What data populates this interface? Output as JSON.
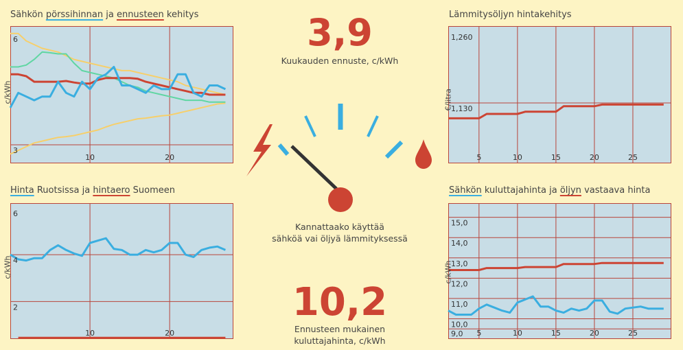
{
  "colors": {
    "panel_bg": "#c8dde6",
    "grid": "#b8443a",
    "blue": "#3aaee0",
    "red": "#cc4433",
    "green": "#5fd6a2",
    "yellow": "#f7cf6a",
    "page_bg": "#fdf4c4"
  },
  "panels": {
    "tl": {
      "title_parts": [
        "Sähkön ",
        "pörssihinnan",
        " ja ",
        "ennusteen",
        " kehitys"
      ],
      "ylabel": "c/kWh"
    },
    "bl": {
      "title_parts": [
        "Hinta",
        " Ruotsissa ja ",
        "hintaero",
        " Suomeen"
      ],
      "ylabel": "c/kWh"
    },
    "tr": {
      "title": "Lämmitysöljyn hintakehitys",
      "ylabel": "€/litra"
    },
    "br": {
      "title_parts": [
        "Sähkön",
        " kuluttajahinta ja ",
        "öljyn",
        " vastaava hinta"
      ],
      "ylabel": "c/kWh"
    }
  },
  "center": {
    "forecast_value": "3,9",
    "forecast_caption": "Kuukauden ennuste, c/kWh",
    "question_line1": "Kannattaako käyttää",
    "question_line2": "sähköä vai öljyä lämmityksessä",
    "consumer_value": "10,2",
    "consumer_caption_line1": "Ennusteen mukainen",
    "consumer_caption_line2": "kuluttajahinta, c/kWh",
    "gauge_icons": [
      "lightning-icon",
      "oil-drop-icon"
    ]
  },
  "chart_data": [
    {
      "id": "tl",
      "type": "line",
      "title": "Sähkön pörssihinnan ja ennusteen kehitys",
      "ylabel": "c/kWh",
      "xlim": [
        0,
        28
      ],
      "ylim": [
        2.5,
        6.2
      ],
      "xticks": [
        10,
        20
      ],
      "yticks": [
        {
          "v": 6,
          "label": "6"
        },
        {
          "v": 3,
          "label": "3"
        }
      ],
      "ygrid": [
        3
      ],
      "series": [
        {
          "key": "band_upper",
          "color": "yellow",
          "x": [
            0,
            1,
            2,
            3,
            4,
            5,
            6,
            7,
            8,
            9,
            10,
            11,
            12,
            13,
            14,
            15,
            16,
            17,
            18,
            19,
            20,
            21,
            22,
            23,
            24,
            25,
            26,
            27
          ],
          "y": [
            6.0,
            6.0,
            5.8,
            5.7,
            5.6,
            5.55,
            5.5,
            5.4,
            5.3,
            5.25,
            5.2,
            5.15,
            5.1,
            5.05,
            5.0,
            5.0,
            4.95,
            4.9,
            4.85,
            4.8,
            4.75,
            4.7,
            4.6,
            4.55,
            4.5,
            4.45,
            4.4,
            4.35
          ]
        },
        {
          "key": "band_lower",
          "color": "yellow",
          "x": [
            0,
            1,
            2,
            3,
            4,
            5,
            6,
            7,
            8,
            9,
            10,
            11,
            12,
            13,
            14,
            15,
            16,
            17,
            18,
            19,
            20,
            21,
            22,
            23,
            24,
            25,
            26,
            27
          ],
          "y": [
            2.75,
            2.85,
            2.95,
            3.05,
            3.1,
            3.15,
            3.2,
            3.22,
            3.25,
            3.3,
            3.35,
            3.4,
            3.48,
            3.55,
            3.6,
            3.65,
            3.7,
            3.72,
            3.75,
            3.78,
            3.8,
            3.85,
            3.9,
            3.95,
            4.0,
            4.05,
            4.1,
            4.12
          ]
        },
        {
          "key": "band_mid",
          "color": "green",
          "x": [
            0,
            1,
            2,
            3,
            4,
            5,
            6,
            7,
            8,
            9,
            10,
            11,
            12,
            13,
            14,
            15,
            16,
            17,
            18,
            19,
            20,
            21,
            22,
            23,
            24,
            25,
            26,
            27
          ],
          "y": [
            5.1,
            5.1,
            5.15,
            5.3,
            5.5,
            5.48,
            5.45,
            5.45,
            5.2,
            5.0,
            4.95,
            4.9,
            4.85,
            4.8,
            4.7,
            4.6,
            4.55,
            4.45,
            4.4,
            4.35,
            4.3,
            4.25,
            4.2,
            4.2,
            4.2,
            4.15,
            4.15,
            4.15
          ]
        },
        {
          "key": "forecast",
          "color": "red",
          "x": [
            0,
            1,
            2,
            3,
            4,
            5,
            6,
            7,
            8,
            9,
            10,
            11,
            12,
            13,
            14,
            15,
            16,
            17,
            18,
            19,
            20,
            21,
            22,
            23,
            24,
            25,
            26,
            27
          ],
          "y": [
            4.9,
            4.9,
            4.85,
            4.7,
            4.7,
            4.7,
            4.7,
            4.72,
            4.68,
            4.65,
            4.65,
            4.75,
            4.8,
            4.8,
            4.8,
            4.8,
            4.78,
            4.7,
            4.65,
            4.6,
            4.55,
            4.5,
            4.45,
            4.4,
            4.4,
            4.35,
            4.35,
            4.35
          ]
        },
        {
          "key": "spot",
          "color": "blue",
          "x": [
            0,
            1,
            2,
            3,
            4,
            5,
            6,
            7,
            8,
            9,
            10,
            11,
            12,
            13,
            14,
            15,
            16,
            17,
            18,
            19,
            20,
            21,
            22,
            23,
            24,
            25,
            26,
            27
          ],
          "y": [
            4.0,
            4.4,
            4.3,
            4.2,
            4.3,
            4.3,
            4.7,
            4.4,
            4.3,
            4.7,
            4.5,
            4.8,
            4.9,
            5.1,
            4.6,
            4.6,
            4.5,
            4.4,
            4.6,
            4.5,
            4.5,
            4.9,
            4.9,
            4.4,
            4.3,
            4.6,
            4.6,
            4.5
          ]
        }
      ]
    },
    {
      "id": "bl",
      "type": "line",
      "title": "Hinta Ruotsissa ja hintaero Suomeen",
      "ylabel": "c/kWh",
      "xlim": [
        0,
        28
      ],
      "ylim": [
        0.4,
        6.2
      ],
      "xticks": [
        10,
        20
      ],
      "yticks": [
        {
          "v": 6,
          "label": "6"
        },
        {
          "v": 4,
          "label": "4"
        },
        {
          "v": 2,
          "label": "2"
        }
      ],
      "ygrid": [
        4,
        2
      ],
      "series": [
        {
          "key": "sweden",
          "color": "blue",
          "x": [
            0,
            1,
            2,
            3,
            4,
            5,
            6,
            7,
            8,
            9,
            10,
            11,
            12,
            13,
            14,
            15,
            16,
            17,
            18,
            19,
            20,
            21,
            22,
            23,
            24,
            25,
            26,
            27
          ],
          "y": [
            4.0,
            3.8,
            3.75,
            3.85,
            3.85,
            4.2,
            4.4,
            4.2,
            4.05,
            3.95,
            4.5,
            4.6,
            4.7,
            4.25,
            4.2,
            4.0,
            4.0,
            4.2,
            4.1,
            4.2,
            4.5,
            4.5,
            4.0,
            3.9,
            4.2,
            4.3,
            4.35,
            4.2
          ]
        },
        {
          "key": "difference",
          "color": "red",
          "x": [
            1,
            27
          ],
          "y": [
            0.45,
            0.45
          ]
        }
      ]
    },
    {
      "id": "tr",
      "type": "line",
      "title": "Lämmitysöljyn hintakehitys",
      "ylabel": "€/litra",
      "xlim": [
        1,
        30
      ],
      "ylim": [
        1.02,
        1.27
      ],
      "xticks": [
        5,
        10,
        15,
        20,
        25
      ],
      "yticks": [
        {
          "v": 1.26,
          "label": "1,260"
        },
        {
          "v": 1.13,
          "label": "1,130"
        }
      ],
      "ygrid": [
        1.13
      ],
      "series": [
        {
          "key": "oil",
          "color": "red",
          "x": [
            1,
            2,
            3,
            4,
            5,
            6,
            7,
            8,
            9,
            10,
            11,
            12,
            13,
            14,
            15,
            16,
            17,
            18,
            19,
            20,
            21,
            22,
            23,
            24,
            25,
            26,
            27,
            28,
            29
          ],
          "y": [
            1.102,
            1.102,
            1.102,
            1.102,
            1.102,
            1.11,
            1.11,
            1.11,
            1.11,
            1.11,
            1.114,
            1.114,
            1.114,
            1.114,
            1.114,
            1.124,
            1.124,
            1.124,
            1.124,
            1.124,
            1.127,
            1.127,
            1.127,
            1.127,
            1.127,
            1.127,
            1.127,
            1.127,
            1.127
          ]
        }
      ]
    },
    {
      "id": "br",
      "type": "line",
      "title": "Sähkön kuluttajahinta ja öljyn vastaava hinta",
      "ylabel": "c/kWh",
      "xlim": [
        1,
        30
      ],
      "ylim": [
        9.0,
        15.7
      ],
      "xticks": [
        5,
        10,
        15,
        20,
        25
      ],
      "yticks": [
        {
          "v": 15.0,
          "label": "15,0"
        },
        {
          "v": 14.0,
          "label": "14,0"
        },
        {
          "v": 13.0,
          "label": "13,0"
        },
        {
          "v": 12.0,
          "label": "12,0"
        },
        {
          "v": 11.0,
          "label": "11,0"
        },
        {
          "v": 10.0,
          "label": "10,0"
        },
        {
          "v": 9.0,
          "label": "9,0"
        }
      ],
      "ygrid": [
        15.0,
        14.0,
        13.0,
        12.0,
        11.0,
        10.0,
        9.5
      ],
      "series": [
        {
          "key": "oil_equivalent",
          "color": "red",
          "x": [
            1,
            2,
            3,
            4,
            5,
            6,
            7,
            8,
            9,
            10,
            11,
            12,
            13,
            14,
            15,
            16,
            17,
            18,
            19,
            20,
            21,
            22,
            23,
            24,
            25,
            26,
            27,
            28,
            29
          ],
          "y": [
            12.4,
            12.4,
            12.4,
            12.4,
            12.4,
            12.5,
            12.5,
            12.5,
            12.5,
            12.5,
            12.55,
            12.55,
            12.55,
            12.55,
            12.55,
            12.7,
            12.7,
            12.7,
            12.7,
            12.7,
            12.75,
            12.75,
            12.75,
            12.75,
            12.75,
            12.75,
            12.75,
            12.75,
            12.75
          ]
        },
        {
          "key": "electricity",
          "color": "blue",
          "x": [
            1,
            2,
            3,
            4,
            5,
            6,
            7,
            8,
            9,
            10,
            11,
            12,
            13,
            14,
            15,
            16,
            17,
            18,
            19,
            20,
            21,
            22,
            23,
            24,
            25,
            26,
            27,
            28,
            29
          ],
          "y": [
            10.4,
            10.2,
            10.2,
            10.2,
            10.5,
            10.7,
            10.55,
            10.4,
            10.3,
            10.8,
            10.95,
            11.1,
            10.6,
            10.6,
            10.4,
            10.3,
            10.5,
            10.4,
            10.5,
            10.9,
            10.9,
            10.35,
            10.25,
            10.5,
            10.55,
            10.6,
            10.5,
            10.5,
            10.5
          ]
        }
      ]
    }
  ]
}
